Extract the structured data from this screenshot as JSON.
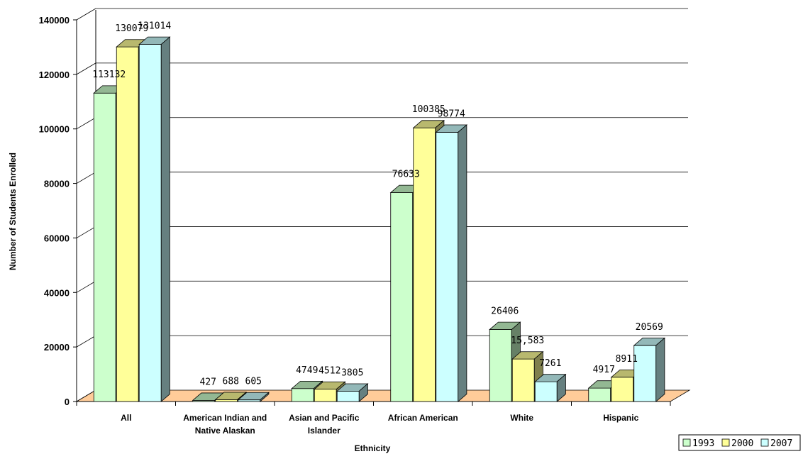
{
  "chart_data": {
    "type": "bar",
    "title": "",
    "xlabel": "Ethnicity",
    "ylabel": "Number of Students Enrolled",
    "ylim": [
      0,
      140000
    ],
    "yticks": [
      "0",
      "20000",
      "40000",
      "60000",
      "80000",
      "100000",
      "120000",
      "140000"
    ],
    "grid": true,
    "legend_position": "bottom-right",
    "categories": [
      [
        "All"
      ],
      [
        "American Indian and",
        "Native Alaskan"
      ],
      [
        "Asian and Pacific",
        "Islander"
      ],
      [
        "African American"
      ],
      [
        "White"
      ],
      [
        "Hispanic"
      ]
    ],
    "series": [
      {
        "name": "1993",
        "color": "#ccffcc",
        "values": [
          113132,
          427,
          4749,
          76633,
          26406,
          4917
        ],
        "labels": [
          "113132",
          "427",
          "4749",
          "76633",
          "26406",
          "4917"
        ]
      },
      {
        "name": "2000",
        "color": "#ffff99",
        "values": [
          130079,
          688,
          4512,
          100385,
          15583,
          8911
        ],
        "labels": [
          "130079",
          "688",
          "4512",
          "100385",
          "15,583",
          "8911"
        ]
      },
      {
        "name": "2007",
        "color": "#ccffff",
        "values": [
          131014,
          605,
          3805,
          98774,
          7261,
          20569
        ],
        "labels": [
          "131014",
          "605",
          "3805",
          "98774",
          "7261",
          "20569"
        ]
      }
    ],
    "floor_color": "#ffcc99"
  }
}
